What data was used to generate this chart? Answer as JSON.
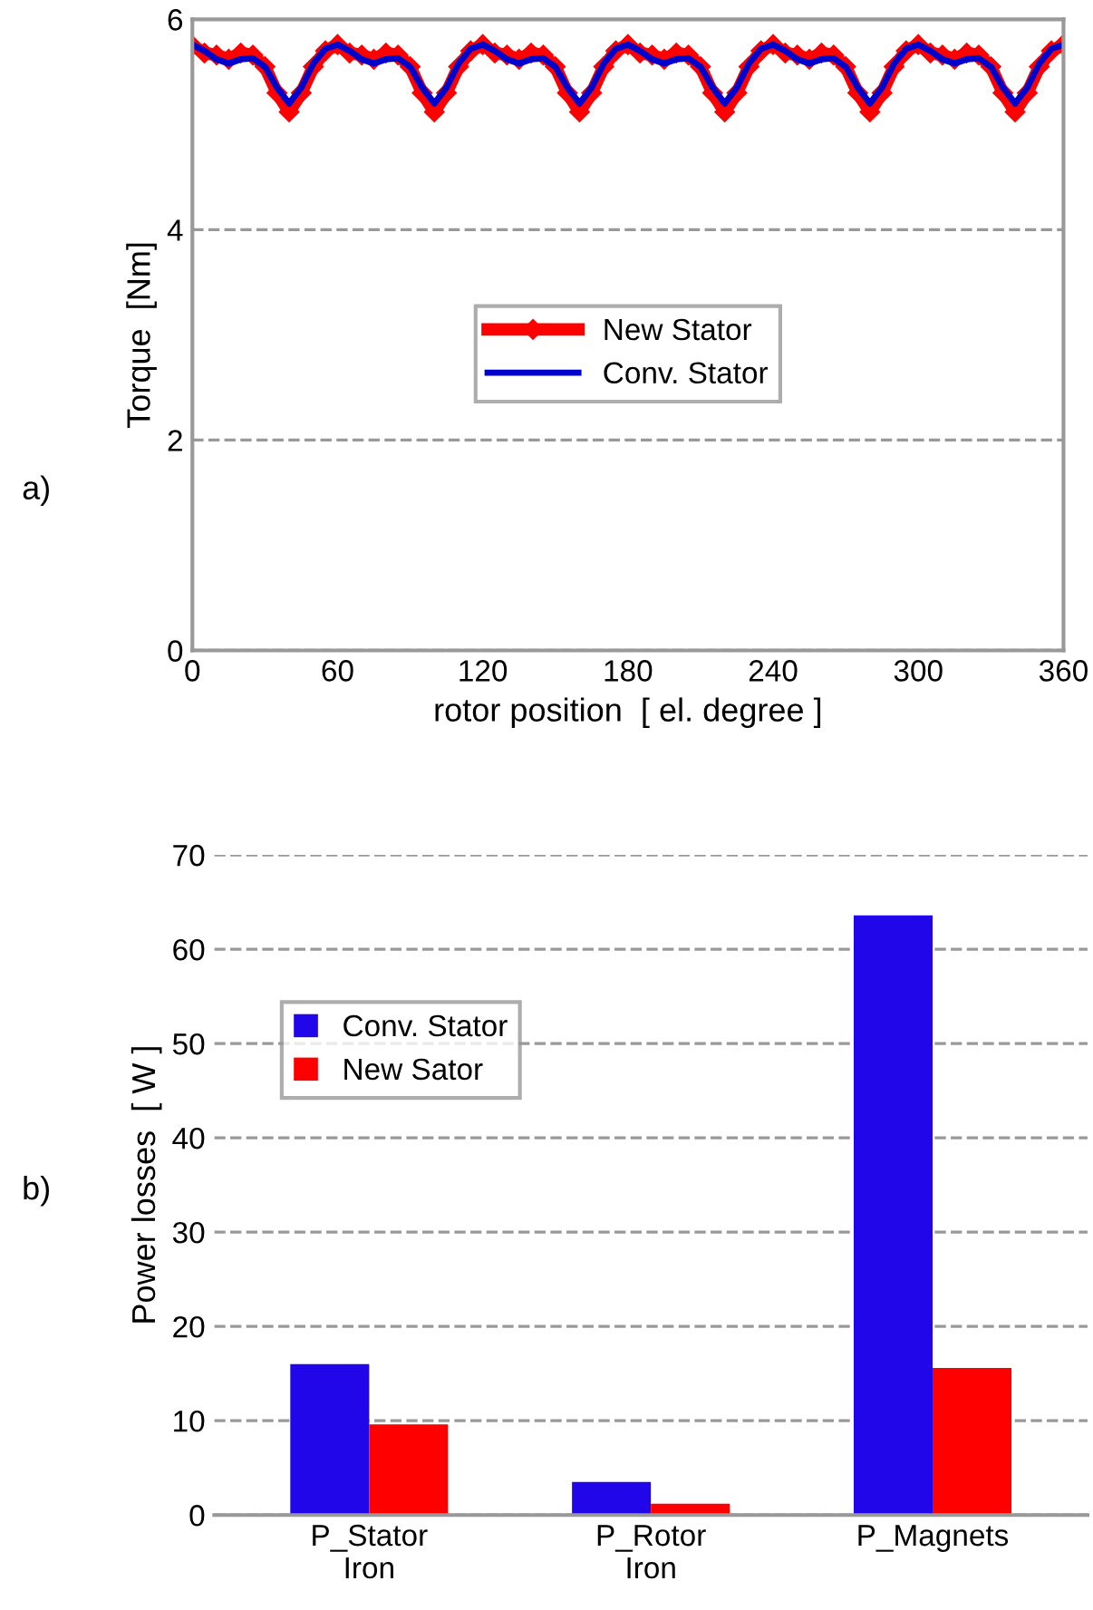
{
  "chart_data": [
    {
      "type": "line",
      "xlabel": "rotor position  [ el. degree ]",
      "ylabel": "Torque  [Nm]",
      "annotations": [
        "a)"
      ],
      "x": [
        0,
        5,
        10,
        15,
        20,
        25,
        30,
        35,
        40,
        45,
        50,
        55,
        60,
        65,
        70,
        75,
        80,
        85,
        90,
        95,
        100,
        105,
        110,
        115,
        120,
        125,
        130,
        135,
        140,
        145,
        150,
        155,
        160,
        165,
        170,
        175,
        180,
        185,
        190,
        195,
        200,
        205,
        210,
        215,
        220,
        225,
        230,
        235,
        240,
        245,
        250,
        255,
        260,
        265,
        270,
        275,
        280,
        285,
        290,
        295,
        300,
        305,
        310,
        315,
        320,
        325,
        330,
        335,
        340,
        345,
        350,
        355,
        360
      ],
      "series": [
        {
          "name": "New Stator",
          "color": "#ff0000",
          "marker": "diamond",
          "values": [
            5.75,
            5.68,
            5.66,
            5.62,
            5.68,
            5.66,
            5.55,
            5.3,
            5.12,
            5.3,
            5.55,
            5.7,
            5.76,
            5.68,
            5.66,
            5.62,
            5.68,
            5.66,
            5.55,
            5.3,
            5.12,
            5.3,
            5.55,
            5.7,
            5.76,
            5.68,
            5.66,
            5.62,
            5.68,
            5.66,
            5.55,
            5.3,
            5.12,
            5.3,
            5.55,
            5.7,
            5.76,
            5.68,
            5.66,
            5.62,
            5.68,
            5.66,
            5.55,
            5.3,
            5.12,
            5.3,
            5.55,
            5.7,
            5.76,
            5.68,
            5.66,
            5.62,
            5.68,
            5.66,
            5.55,
            5.3,
            5.12,
            5.3,
            5.55,
            5.7,
            5.76,
            5.68,
            5.66,
            5.62,
            5.68,
            5.66,
            5.55,
            5.3,
            5.12,
            5.3,
            5.55,
            5.7,
            5.76
          ]
        },
        {
          "name": "Conv. Stator",
          "color": "#0000cc",
          "marker": "none",
          "values": [
            5.76,
            5.7,
            5.62,
            5.58,
            5.62,
            5.63,
            5.55,
            5.35,
            5.2,
            5.35,
            5.58,
            5.72,
            5.76,
            5.7,
            5.62,
            5.58,
            5.62,
            5.63,
            5.55,
            5.35,
            5.2,
            5.35,
            5.58,
            5.72,
            5.76,
            5.7,
            5.62,
            5.58,
            5.62,
            5.63,
            5.55,
            5.35,
            5.2,
            5.35,
            5.58,
            5.72,
            5.76,
            5.7,
            5.62,
            5.58,
            5.62,
            5.63,
            5.55,
            5.35,
            5.2,
            5.35,
            5.58,
            5.72,
            5.76,
            5.7,
            5.62,
            5.58,
            5.62,
            5.63,
            5.55,
            5.35,
            5.2,
            5.35,
            5.58,
            5.72,
            5.76,
            5.7,
            5.62,
            5.58,
            5.62,
            5.63,
            5.55,
            5.35,
            5.2,
            5.35,
            5.58,
            5.72,
            5.76
          ]
        }
      ],
      "xlim": [
        0,
        360
      ],
      "xticks": [
        0,
        60,
        120,
        180,
        240,
        300,
        360
      ],
      "ylim": [
        0,
        6
      ],
      "yticks": [
        0,
        2,
        4,
        6
      ],
      "grid": "y",
      "legend": "center",
      "line_style": "solid"
    },
    {
      "type": "bar",
      "ylabel": "Power losses  [ W ]",
      "annotations": [
        "b)"
      ],
      "categories": [
        "P_Stator\nIron",
        "P_Rotor\nIron",
        "P_Magnets"
      ],
      "series": [
        {
          "name": "Conv. Stator",
          "color": "#2006e8",
          "values": [
            16.0,
            3.5,
            63.6
          ]
        },
        {
          "name": "New Sator",
          "color": "#ff0000",
          "values": [
            9.6,
            1.2,
            15.6
          ]
        }
      ],
      "ylim": [
        0,
        70
      ],
      "yticks": [
        0,
        10,
        20,
        30,
        40,
        50,
        60,
        70
      ],
      "grid": "y",
      "legend": "upper left"
    }
  ]
}
